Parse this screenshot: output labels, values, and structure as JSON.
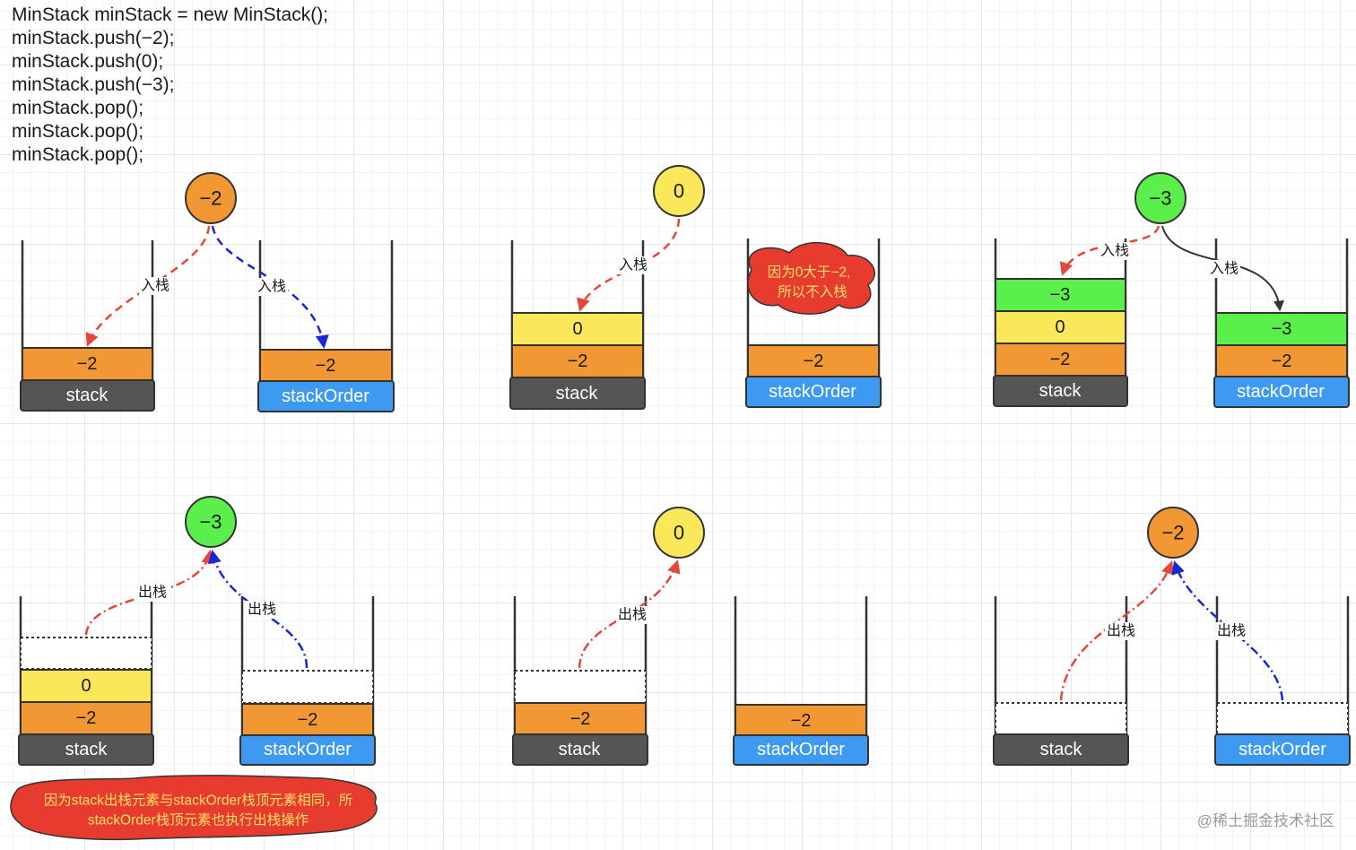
{
  "code_lines": [
    "MinStack minStack = new MinStack();",
    "minStack.push(−2);",
    "minStack.push(0);",
    "minStack.push(−3);",
    "minStack.pop();",
    "minStack.pop();",
    "minStack.pop();"
  ],
  "colors": {
    "orange": "#f19733",
    "yellow": "#fbe85a",
    "green": "#5bef4c",
    "stack_label": "#555555",
    "order_label": "#3d9af0",
    "red_arrow": "#e3483a",
    "blue_arrow": "#1726d6",
    "black_arrow": "#333333",
    "cloud": "#e63b2e"
  },
  "labels": {
    "stack": "stack",
    "stack_order": "stackOrder",
    "push": "入栈",
    "pop": "出栈"
  },
  "circles": [
    "−2",
    "0",
    "−3",
    "−3",
    "0",
    "−2"
  ],
  "values": {
    "neg2": "−2",
    "zero": "0",
    "neg3": "−3"
  },
  "notes": {
    "no_push_line1": "因为0大于−2,",
    "no_push_line2": "所以不入栈",
    "pop_line1": "因为stack出栈元素与stackOrder栈顶元素相同，所",
    "pop_line2": "stackOrder栈顶元素也执行出栈操作"
  },
  "watermark": "@稀土掘金技术社区"
}
